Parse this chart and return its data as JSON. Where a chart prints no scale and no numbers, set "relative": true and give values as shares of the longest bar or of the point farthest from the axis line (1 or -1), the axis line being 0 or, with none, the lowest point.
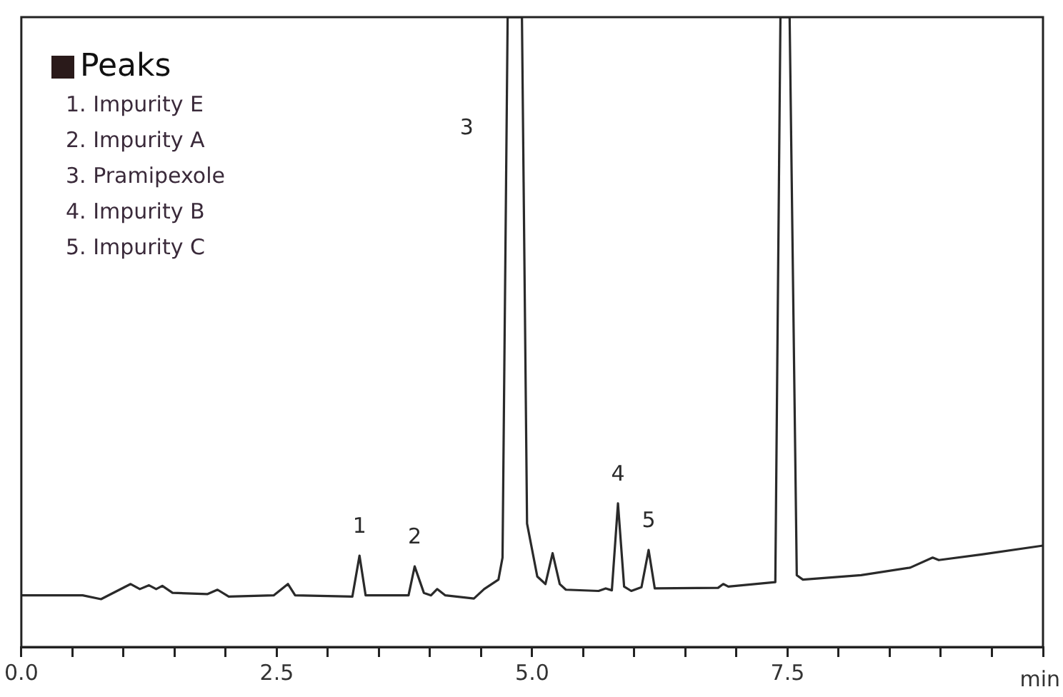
{
  "chart_data": {
    "type": "line",
    "relative": true,
    "xlabel": "min",
    "legend_title": "Peaks",
    "x": [
      0.0,
      0.6,
      0.78,
      1.07,
      1.16,
      1.25,
      1.32,
      1.38,
      1.48,
      1.82,
      1.92,
      2.03,
      2.47,
      2.61,
      2.68,
      3.24,
      3.31,
      3.37,
      3.69,
      3.79,
      3.85,
      3.94,
      4.01,
      4.07,
      4.15,
      4.43,
      4.53,
      4.67,
      4.71,
      4.76,
      4.9,
      4.95,
      5.05,
      5.13,
      5.2,
      5.27,
      5.33,
      5.65,
      5.72,
      5.78,
      5.84,
      5.9,
      5.97,
      6.07,
      6.14,
      6.2,
      6.82,
      6.87,
      6.92,
      7.38,
      7.43,
      7.52,
      7.59,
      7.65,
      8.22,
      8.7,
      8.92,
      8.98,
      9.4,
      10.0
    ],
    "series": [
      {
        "color": "#2a2a2a",
        "values": [
          0.082,
          0.082,
          0.076,
          0.1,
          0.092,
          0.098,
          0.092,
          0.097,
          0.086,
          0.084,
          0.091,
          0.08,
          0.082,
          0.1,
          0.082,
          0.08,
          0.145,
          0.082,
          0.082,
          0.082,
          0.128,
          0.086,
          0.082,
          0.092,
          0.082,
          0.077,
          0.092,
          0.107,
          0.142,
          1,
          1,
          0.196,
          0.112,
          0.1,
          0.149,
          0.1,
          0.091,
          0.089,
          0.093,
          0.09,
          0.228,
          0.096,
          0.089,
          0.095,
          0.154,
          0.093,
          0.094,
          0.1,
          0.096,
          0.103,
          1,
          1,
          0.114,
          0.107,
          0.114,
          0.126,
          0.142,
          0.138,
          0.147,
          0.161
        ]
      }
    ],
    "xlim": [
      0,
      10
    ],
    "xticks": [
      {
        "value": 0,
        "label": "0.0"
      },
      {
        "value": 0.5,
        "label": null
      },
      {
        "value": 1,
        "label": null
      },
      {
        "value": 1.5,
        "label": null
      },
      {
        "value": 2,
        "label": null
      },
      {
        "value": 2.5,
        "label": "2.5"
      },
      {
        "value": 3,
        "label": null
      },
      {
        "value": 3.5,
        "label": null
      },
      {
        "value": 4,
        "label": null
      },
      {
        "value": 4.5,
        "label": null
      },
      {
        "value": 5,
        "label": "5.0"
      },
      {
        "value": 5.5,
        "label": null
      },
      {
        "value": 6,
        "label": null
      },
      {
        "value": 6.5,
        "label": null
      },
      {
        "value": 7,
        "label": null
      },
      {
        "value": 7.5,
        "label": "7.5"
      },
      {
        "value": 8,
        "label": null
      },
      {
        "value": 8.5,
        "label": null
      },
      {
        "value": 9,
        "label": null
      },
      {
        "value": 9.5,
        "label": null
      },
      {
        "value": 10,
        "label": null
      }
    ],
    "annotations": [
      "1. Impurity E",
      "2. Impurity A",
      "3. Pramipexole",
      "4. Impurity B",
      "5. Impurity C",
      {
        "text": "1",
        "x": 3.31,
        "y": 0.145
      },
      {
        "text": "2",
        "x": 3.85,
        "y": 0.128
      },
      {
        "text": "3",
        "x": 4.75,
        "y": 0.823
      },
      {
        "text": "4",
        "x": 5.84,
        "y": 0.228
      },
      {
        "text": "5",
        "x": 6.14,
        "y": 0.154
      }
    ],
    "grid": false,
    "legend": false,
    "marker": "none",
    "line_style": "solid"
  }
}
